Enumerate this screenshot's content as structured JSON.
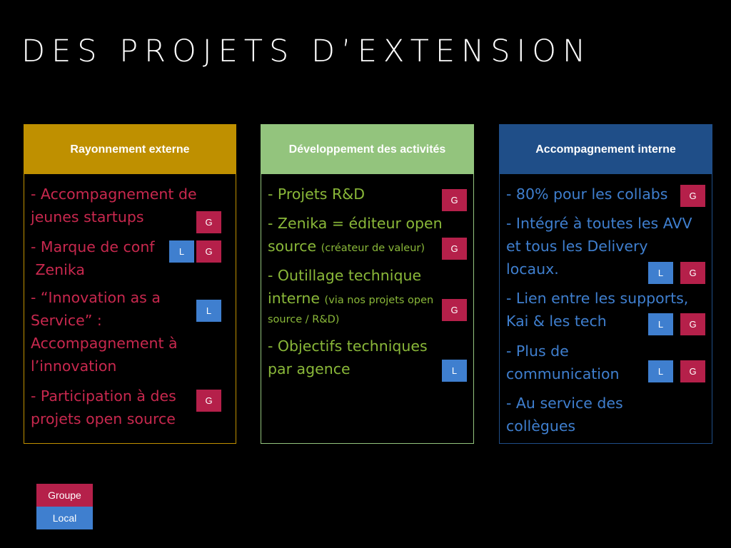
{
  "title": "DES PROJETS D’EXTENSION",
  "colors": {
    "background": "#000000",
    "title": "#ffffff",
    "groupe_badge": "#b5204a",
    "local_badge": "#3f7fcf",
    "col1_header": "#bf9000",
    "col1_text": "#c8284e",
    "col2_header": "#93c47d",
    "col2_text": "#8ab839",
    "col3_header": "#1f4e88",
    "col3_text": "#3f7fcf"
  },
  "columns": [
    {
      "header": "Rayonnement externe",
      "items": [
        {
          "lines": [
            "- Accompagnement de",
            "jeunes startups"
          ],
          "badges": [
            "G"
          ]
        },
        {
          "lines": [
            "- Marque de conf",
            " Zenika"
          ],
          "badges": [
            "L",
            "G"
          ]
        },
        {
          "lines": [
            "- “Innovation as a",
            "Service” :",
            "Accompagnement à",
            "l’innovation"
          ],
          "badges": [
            "L"
          ]
        },
        {
          "lines": [
            "- Participation à des",
            "projets open source"
          ],
          "badges": [
            "G"
          ]
        }
      ]
    },
    {
      "header": "Développement des activités",
      "items": [
        {
          "lines": [
            "- Projets R&D"
          ],
          "badges": [
            "G"
          ]
        },
        {
          "line1": "- Zenika = éditeur open",
          "line2": "source",
          "note": "(créateur de valeur)",
          "badges": [
            "G"
          ]
        },
        {
          "line1": "- Outillage technique",
          "line2": "interne",
          "note1": "(via nos projets open",
          "note2": "source / R&D)",
          "badges": [
            "G"
          ]
        },
        {
          "lines": [
            "- Objectifs techniques",
            "par agence"
          ],
          "badges": [
            "L"
          ]
        }
      ]
    },
    {
      "header": "Accompagnement interne",
      "items": [
        {
          "lines": [
            "- 80% pour les collabs"
          ],
          "badges": [
            "G"
          ]
        },
        {
          "lines": [
            "- Intégré à toutes les AVV",
            "et tous les Delivery",
            "locaux."
          ],
          "badges": [
            "L",
            "G"
          ]
        },
        {
          "lines": [
            "- Lien entre les supports,",
            "Kai & les tech"
          ],
          "badges": [
            "L",
            "G"
          ]
        },
        {
          "lines": [
            "- Plus de",
            "communication"
          ],
          "badges": [
            "L",
            "G"
          ]
        },
        {
          "lines": [
            "- Au service des",
            "collègues"
          ],
          "badges": []
        }
      ]
    }
  ],
  "legend": {
    "groupe": "Groupe",
    "local": "Local"
  }
}
